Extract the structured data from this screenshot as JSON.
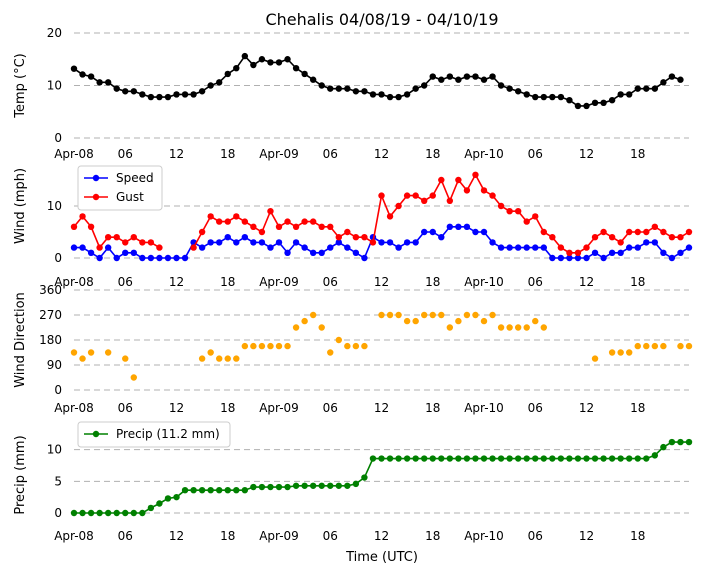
{
  "title": "Chehalis 04/08/19 - 04/10/19",
  "xlabel": "Time (UTC)",
  "x_ticks": [
    "Apr-08",
    "06",
    "12",
    "18",
    "Apr-09",
    "06",
    "12",
    "18",
    "Apr-10",
    "06",
    "12",
    "18"
  ],
  "colors": {
    "temp": "#000000",
    "speed": "#0000ff",
    "gust": "#ff0000",
    "dir": "#ffa500",
    "precip": "#008000"
  },
  "chart_data": [
    {
      "type": "line",
      "ylabel": "Temp (°C)",
      "ylim": [
        0,
        20
      ],
      "yticks": [
        "0",
        "10",
        "20"
      ],
      "grid": true,
      "series": [
        {
          "values": [
            13.2,
            12.1,
            11.7,
            10.6,
            10.6,
            9.4,
            8.9,
            8.9,
            8.3,
            7.8,
            7.8,
            7.8,
            8.3,
            8.3,
            8.3,
            8.9,
            10.0,
            10.6,
            12.2,
            13.3,
            15.6,
            13.9,
            15.0,
            14.4,
            14.4,
            15.0,
            13.3,
            12.2,
            11.1,
            10.0,
            9.4,
            9.4,
            9.4,
            8.9,
            8.9,
            8.3,
            8.3,
            7.8,
            7.8,
            8.3,
            9.4,
            10.0,
            11.7,
            11.1,
            11.7,
            11.1,
            11.7,
            11.7,
            11.1,
            11.7,
            10.0,
            9.4,
            8.9,
            8.3,
            7.8,
            7.8,
            7.8,
            7.8,
            7.2,
            6.1,
            6.1,
            6.7,
            6.7,
            7.2,
            8.3,
            8.3,
            9.4,
            9.4,
            9.4,
            10.6,
            11.7,
            11.1
          ]
        }
      ]
    },
    {
      "type": "line",
      "ylabel": "Wind (mph)",
      "ylim": [
        0,
        20
      ],
      "yticks": [
        "0",
        "10"
      ],
      "grid": true,
      "legend_position": "upper-left",
      "series": [
        {
          "name": "Speed",
          "values": [
            2,
            2,
            1,
            0,
            2,
            0,
            1,
            1,
            0,
            0,
            0,
            0,
            0,
            0,
            3,
            2,
            3,
            3,
            4,
            3,
            4,
            3,
            3,
            2,
            3,
            1,
            3,
            2,
            1,
            1,
            2,
            3,
            2,
            1,
            0,
            4,
            3,
            3,
            2,
            3,
            3,
            5,
            5,
            4,
            6,
            6,
            6,
            5,
            5,
            3,
            2,
            2,
            2,
            2,
            2,
            2,
            0,
            0,
            0,
            0,
            0,
            1,
            0,
            1,
            1,
            2,
            2,
            3,
            3,
            1,
            0,
            1,
            2
          ]
        },
        {
          "name": "Gust",
          "values": [
            6,
            8,
            6,
            2,
            4,
            4,
            3,
            4,
            3,
            3,
            2,
            null,
            null,
            null,
            2,
            5,
            8,
            7,
            7,
            8,
            7,
            6,
            5,
            9,
            6,
            7,
            6,
            7,
            7,
            6,
            6,
            4,
            5,
            4,
            4,
            3,
            12,
            8,
            10,
            12,
            12,
            11,
            12,
            15,
            11,
            15,
            13,
            16,
            13,
            12,
            10,
            9,
            9,
            7,
            8,
            5,
            4,
            2,
            1,
            1,
            2,
            4,
            5,
            4,
            3,
            5,
            5,
            5,
            6,
            5,
            4,
            4,
            5
          ]
        }
      ]
    },
    {
      "type": "scatter",
      "ylabel": "Wind Direction",
      "ylim": [
        0,
        360
      ],
      "yticks": [
        "0",
        "90",
        "180",
        "270",
        "360"
      ],
      "grid": true,
      "series": [
        {
          "values": [
            135,
            113,
            135,
            null,
            135,
            null,
            113,
            45,
            null,
            null,
            null,
            null,
            null,
            null,
            null,
            113,
            135,
            113,
            113,
            113,
            158,
            158,
            158,
            158,
            158,
            158,
            225,
            248,
            270,
            225,
            135,
            180,
            158,
            158,
            158,
            null,
            270,
            270,
            270,
            248,
            248,
            270,
            270,
            270,
            225,
            248,
            270,
            270,
            248,
            270,
            225,
            225,
            225,
            225,
            248,
            225,
            null,
            null,
            null,
            null,
            null,
            113,
            null,
            135,
            135,
            135,
            158,
            158,
            158,
            158,
            null,
            158,
            158
          ]
        }
      ]
    },
    {
      "type": "line",
      "ylabel": "Precip (mm)",
      "ylim": [
        0,
        12
      ],
      "yticks": [
        "0",
        "5",
        "10"
      ],
      "grid": true,
      "legend_position": "upper-left",
      "series": [
        {
          "name": "Precip (11.2 mm)",
          "values": [
            0,
            0,
            0,
            0,
            0,
            0,
            0,
            0,
            0,
            0.8,
            1.5,
            2.3,
            2.5,
            3.6,
            3.6,
            3.6,
            3.6,
            3.6,
            3.6,
            3.6,
            3.6,
            4.1,
            4.1,
            4.1,
            4.1,
            4.1,
            4.3,
            4.3,
            4.3,
            4.3,
            4.3,
            4.3,
            4.3,
            4.6,
            5.6,
            8.6,
            8.6,
            8.6,
            8.6,
            8.6,
            8.6,
            8.6,
            8.6,
            8.6,
            8.6,
            8.6,
            8.6,
            8.6,
            8.6,
            8.6,
            8.6,
            8.6,
            8.6,
            8.6,
            8.6,
            8.6,
            8.6,
            8.6,
            8.6,
            8.6,
            8.6,
            8.6,
            8.6,
            8.6,
            8.6,
            8.6,
            8.6,
            8.6,
            9.1,
            10.4,
            11.2,
            11.2,
            11.2
          ]
        }
      ]
    }
  ]
}
